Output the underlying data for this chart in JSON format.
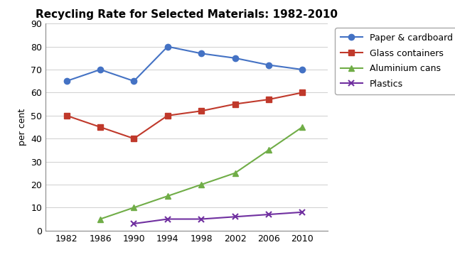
{
  "title": "Recycling Rate for Selected Materials: 1982-2010",
  "ylabel": "per cent",
  "years": [
    1982,
    1986,
    1990,
    1994,
    1998,
    2002,
    2006,
    2010
  ],
  "series": [
    {
      "label": "Paper & cardboard",
      "color": "#4472C4",
      "marker": "o",
      "values": [
        65,
        70,
        65,
        80,
        77,
        75,
        72,
        70
      ]
    },
    {
      "label": "Glass containers",
      "color": "#C0392B",
      "marker": "s",
      "values": [
        50,
        45,
        40,
        50,
        52,
        55,
        57,
        60
      ]
    },
    {
      "label": "Aluminium cans",
      "color": "#70AD47",
      "marker": "^",
      "values": [
        null,
        5,
        10,
        15,
        20,
        25,
        35,
        45
      ]
    },
    {
      "label": "Plastics",
      "color": "#7030A0",
      "marker": "x",
      "values": [
        null,
        null,
        3,
        5,
        5,
        6,
        7,
        8
      ]
    }
  ],
  "ylim": [
    0,
    90
  ],
  "yticks": [
    0,
    10,
    20,
    30,
    40,
    50,
    60,
    70,
    80,
    90
  ],
  "figsize": [
    6.4,
    3.69
  ],
  "dpi": 100,
  "title_fontsize": 11,
  "axis_label_fontsize": 9,
  "tick_fontsize": 9,
  "legend_fontsize": 9,
  "background_color": "#FFFFFF",
  "grid_color": "#BBBBBB",
  "grid_alpha": 0.7
}
